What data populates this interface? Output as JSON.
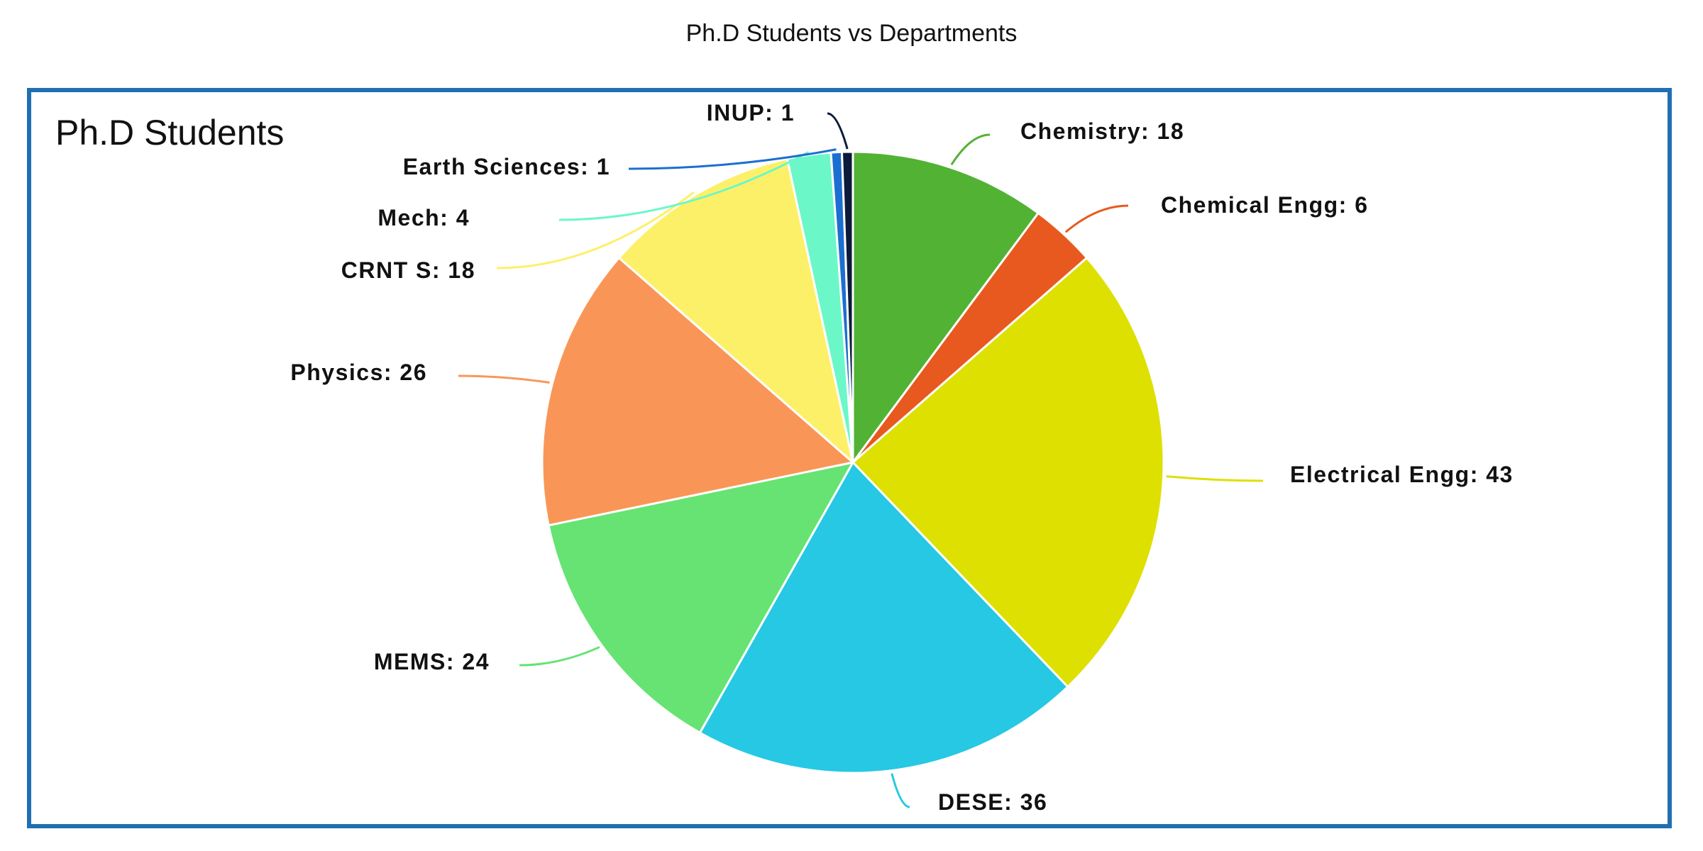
{
  "page_title": "Ph.D Students vs Departments",
  "chart_data": {
    "type": "pie",
    "title": "Ph.D Students",
    "slices": [
      {
        "label": "Chemistry",
        "value": 18,
        "color": "#52b234",
        "text": "Chemistry: 18"
      },
      {
        "label": "Chemical Engg",
        "value": 6,
        "color": "#e8591f",
        "text": "Chemical Engg: 6"
      },
      {
        "label": "Electrical Engg",
        "value": 43,
        "color": "#dde000",
        "text": "Electrical Engg: 43"
      },
      {
        "label": "DESE",
        "value": 36,
        "color": "#26c8e4",
        "text": "DESE: 36"
      },
      {
        "label": "MEMS",
        "value": 24,
        "color": "#66e372",
        "text": "MEMS: 24"
      },
      {
        "label": "Physics",
        "value": 26,
        "color": "#f99657",
        "text": "Physics: 26"
      },
      {
        "label": "CRNTS",
        "value": 18,
        "color": "#fdf069",
        "text": "CRNT S: 18"
      },
      {
        "label": "Mech",
        "value": 4,
        "color": "#6cf7c9",
        "text": "Mech: 4"
      },
      {
        "label": "Earth Sciences",
        "value": 1,
        "color": "#1b6fd0",
        "text": "Earth Sciences: 1"
      },
      {
        "label": "INUP",
        "value": 1,
        "color": "#0d1b3a",
        "text": "INUP: 1"
      }
    ]
  }
}
